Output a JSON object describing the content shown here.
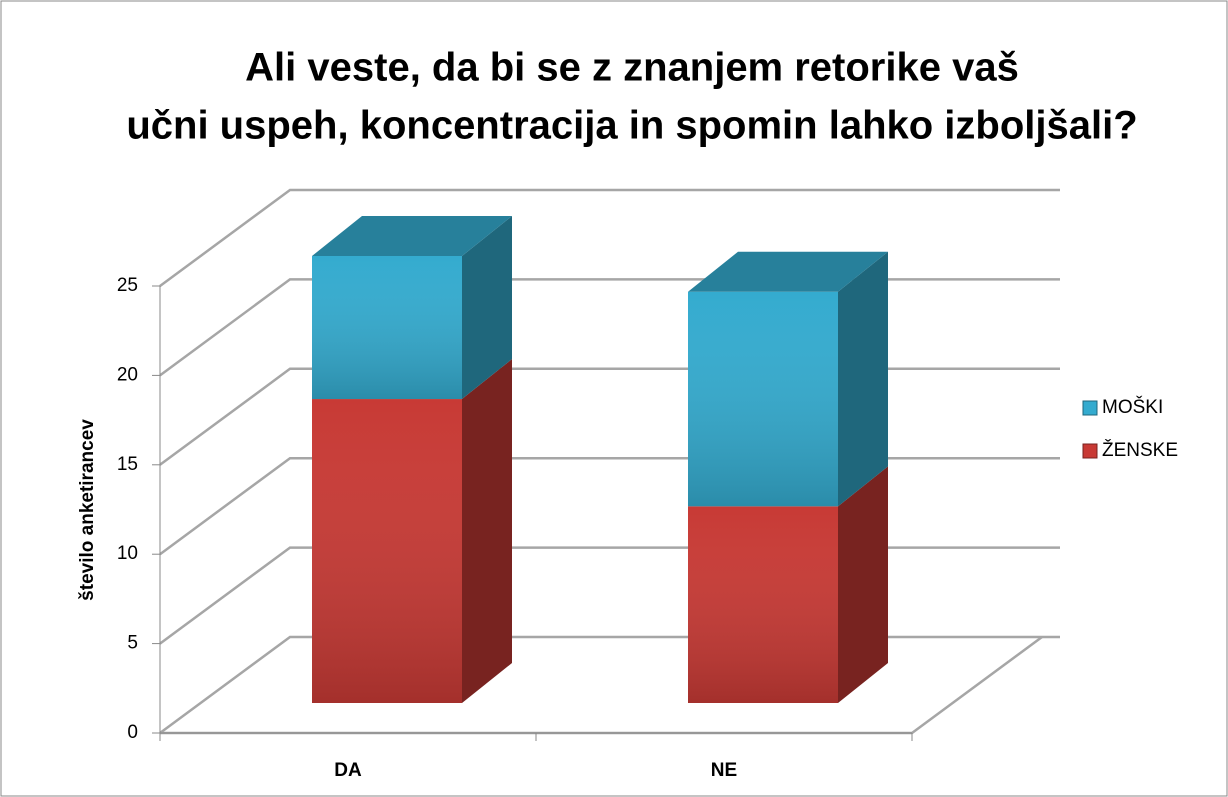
{
  "chart_data": {
    "type": "bar3d_stacked",
    "title": "Ali veste, da bi se z znanjem retorike vaš učni uspeh, koncentracija in spomin lahko izboljšali?",
    "y_label": "število anketirancev",
    "categories": [
      "DA",
      "NE"
    ],
    "series": [
      {
        "name": "ŽENSKE",
        "color": "#c83a35",
        "values": [
          17,
          11
        ]
      },
      {
        "name": "MOŠKI",
        "color": "#34abcf",
        "values": [
          8,
          12
        ]
      }
    ],
    "ylim": [
      0,
      25
    ],
    "yticks": [
      0,
      5,
      10,
      15,
      20,
      25
    ],
    "grid": true,
    "legend": "right"
  }
}
